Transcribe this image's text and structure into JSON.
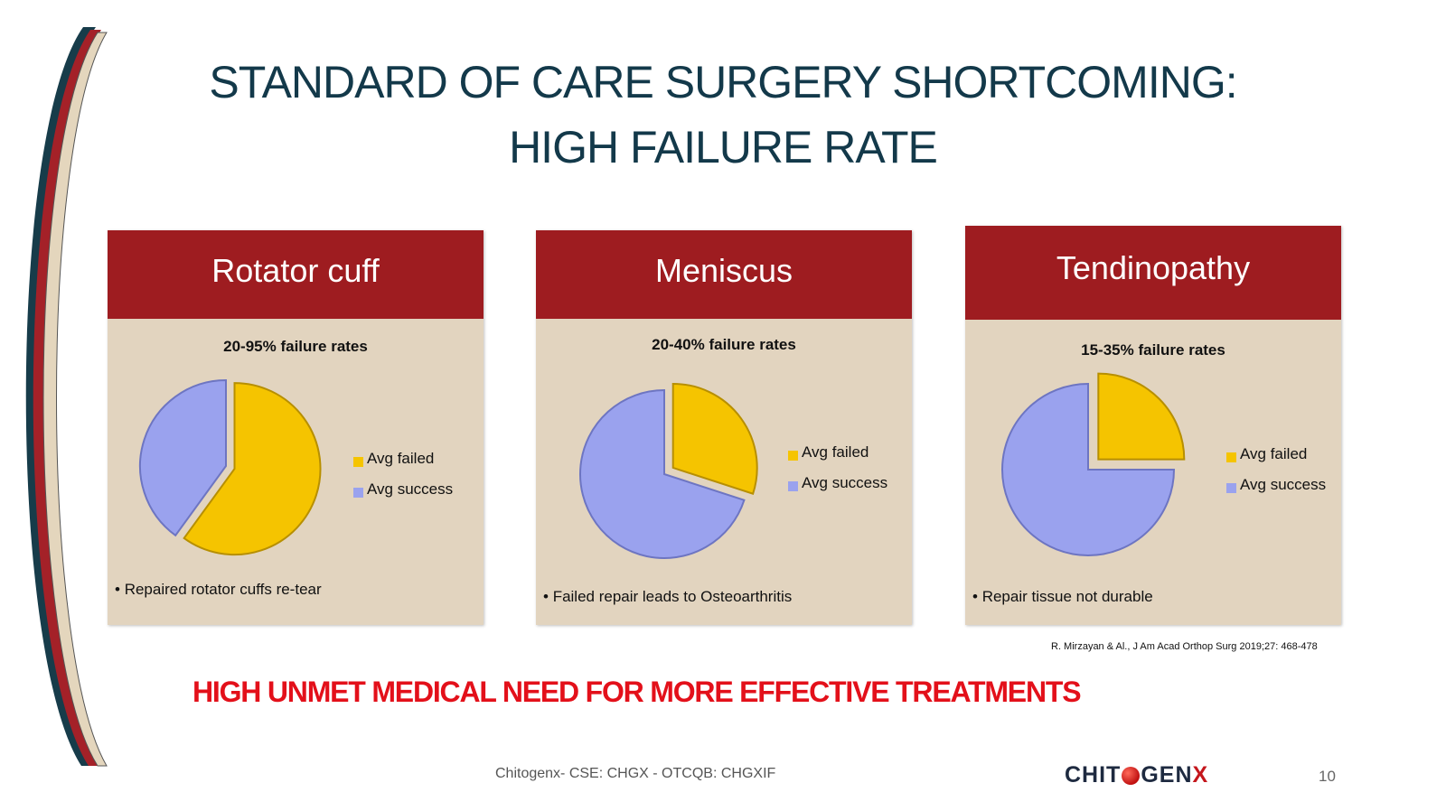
{
  "slide": {
    "title_line1": "STANDARD OF CARE SURGERY SHORTCOMING:",
    "title_line2": "HIGH FAILURE RATE",
    "banner": "HIGH UNMET MEDICAL NEED FOR MORE EFFECTIVE TREATMENTS",
    "reference": "R. Mirzayan & Al., J Am Acad Orthop Surg 2019;27: 468-478",
    "footer": "Chitogenx- CSE: CHGX - OTCQB: CHGXIF",
    "logo": {
      "part1": "CHIT",
      "part2": "GEN",
      "part3": "X"
    },
    "page_number": "10"
  },
  "colors": {
    "failed": "#f5c400",
    "success": "#9aa2ee",
    "header_bg": "#9e1c20",
    "panel_bg": "#e2d4bf",
    "title": "#13394a",
    "banner": "#e3101a"
  },
  "chart_data": [
    {
      "type": "pie",
      "title": "Rotator cuff",
      "subtitle": "20-95% failure rates",
      "categories": [
        "Avg failed",
        "Avg success"
      ],
      "values": [
        60,
        40
      ],
      "note": "Repaired rotator cuffs re-tear"
    },
    {
      "type": "pie",
      "title": "Meniscus",
      "subtitle": "20-40% failure rates",
      "categories": [
        "Avg failed",
        "Avg success"
      ],
      "values": [
        30,
        70
      ],
      "note": "Failed repair leads to Osteoarthritis"
    },
    {
      "type": "pie",
      "title": "Tendinopathy",
      "subtitle": "15-35% failure rates",
      "categories": [
        "Avg failed",
        "Avg success"
      ],
      "values": [
        25,
        75
      ],
      "note": "Repair tissue not durable"
    }
  ]
}
